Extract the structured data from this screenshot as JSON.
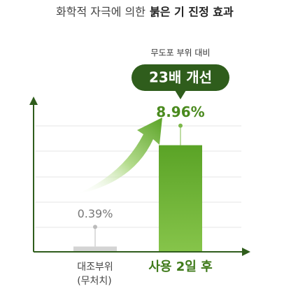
{
  "chart_data": {
    "type": "bar",
    "title": "화학적 자극에 의한",
    "title_emphasis": "붉은 기 진정 효과",
    "annotation": "무도포 부위 대비",
    "badge": "23배 개선",
    "categories": [
      "대조부위",
      "사용 2일 후"
    ],
    "category_note": "(무처치)",
    "values": [
      0.39,
      8.96
    ],
    "value_labels": [
      "0.39%",
      "8.96%"
    ],
    "colors": [
      "#d4d4d4",
      "#62ad2c"
    ],
    "ylim": [
      0,
      10
    ]
  }
}
